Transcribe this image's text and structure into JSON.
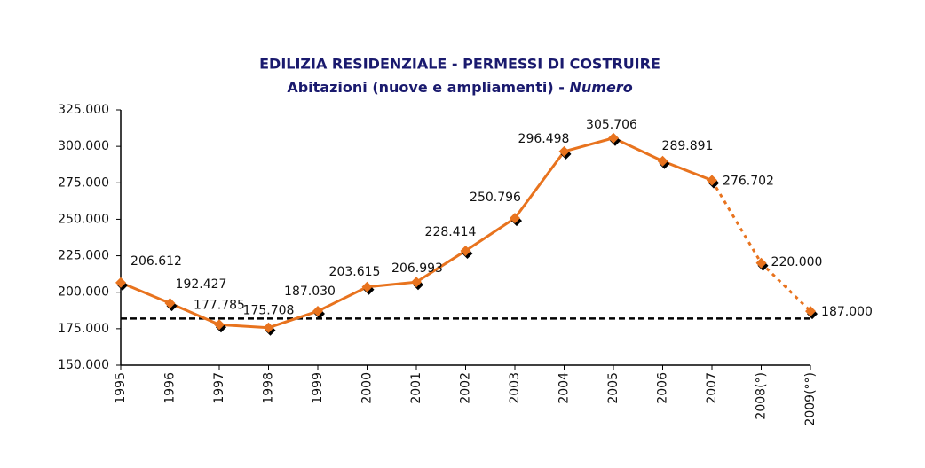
{
  "chart_data": {
    "type": "line",
    "title": "EDILIZIA RESIDENZIALE - PERMESSI DI COSTRUIRE",
    "subtitle": "Abitazioni (nuove e ampliamenti) - ",
    "subtitle_unit": "Numero",
    "categories": [
      "1995",
      "1996",
      "1997",
      "1998",
      "1999",
      "2000",
      "2001",
      "2002",
      "2003",
      "2004",
      "2005",
      "2006",
      "2007",
      "2008(°)",
      "2009(°°)"
    ],
    "series": [
      {
        "color": "#e8731e",
        "line_style": "solid",
        "values": [
          206612,
          192427,
          177785,
          175708,
          187030,
          203615,
          206993,
          228414,
          250796,
          296498,
          305706,
          289891,
          276702,
          null,
          null
        ],
        "value_labels": [
          "206.612",
          "192.427",
          "177.785",
          "175.708",
          "187.030",
          "203.615",
          "206.993",
          "228.414",
          "250.796",
          "296.498",
          "305.706",
          "289.891",
          "276.702",
          null,
          null
        ]
      },
      {
        "color": "#e8731e",
        "line_style": "dotted",
        "values": [
          null,
          null,
          null,
          null,
          null,
          null,
          null,
          null,
          null,
          null,
          null,
          null,
          276702,
          220000,
          187000
        ],
        "value_labels": [
          null,
          null,
          null,
          null,
          null,
          null,
          null,
          null,
          null,
          null,
          null,
          null,
          null,
          "220.000",
          "187.000"
        ]
      }
    ],
    "reference_line": 182000,
    "ylim": [
      150000,
      325000
    ],
    "yticks": [
      {
        "value": 150000,
        "label": "150.000"
      },
      {
        "value": 175000,
        "label": "175.000"
      },
      {
        "value": 200000,
        "label": "200.000"
      },
      {
        "value": 225000,
        "label": "225.000"
      },
      {
        "value": 250000,
        "label": "250.000"
      },
      {
        "value": 275000,
        "label": "275.000"
      },
      {
        "value": 300000,
        "label": "300.000"
      },
      {
        "value": 325000,
        "label": "325.000"
      }
    ],
    "grid": false
  }
}
